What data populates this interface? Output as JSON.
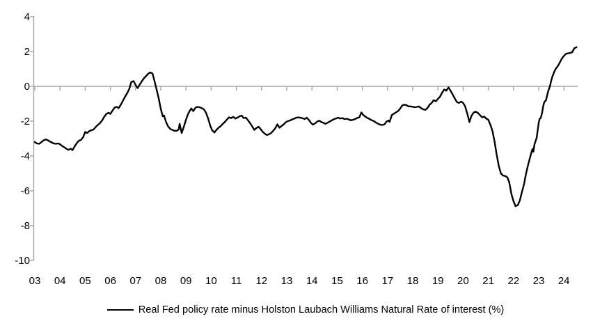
{
  "legend": {
    "label": "Real Fed policy rate minus Holston Laubach Williams Natural Rate of interest (%)"
  },
  "colors": {
    "axis": "#a6a6a6",
    "series_line": "#000000",
    "text": "#000000",
    "background": "#ffffff"
  },
  "chart_data": {
    "type": "line",
    "title": "",
    "xlabel": "",
    "ylabel": "",
    "ylim": [
      -10,
      4
    ],
    "xlim": [
      2002.94,
      2024.55
    ],
    "grid": false,
    "zero_line": true,
    "legend_position": "bottom",
    "y_ticks": [
      4,
      2,
      0,
      -2,
      -4,
      -6,
      -8,
      -10
    ],
    "x_ticks": [
      "03",
      "04",
      "05",
      "06",
      "07",
      "08",
      "09",
      "10",
      "11",
      "12",
      "13",
      "14",
      "15",
      "16",
      "17",
      "18",
      "19",
      "20",
      "21",
      "22",
      "23",
      "24"
    ],
    "series": [
      {
        "name": "Real Fed policy rate minus Holston Laubach Williams Natural Rate of interest (%)",
        "color": "#000000",
        "points": [
          [
            2003.0,
            -3.2
          ],
          [
            2003.08,
            -3.28
          ],
          [
            2003.17,
            -3.3
          ],
          [
            2003.25,
            -3.22
          ],
          [
            2003.33,
            -3.12
          ],
          [
            2003.42,
            -3.05
          ],
          [
            2003.5,
            -3.08
          ],
          [
            2003.58,
            -3.15
          ],
          [
            2003.67,
            -3.22
          ],
          [
            2003.75,
            -3.28
          ],
          [
            2003.83,
            -3.3
          ],
          [
            2003.92,
            -3.28
          ],
          [
            2004.0,
            -3.32
          ],
          [
            2004.08,
            -3.42
          ],
          [
            2004.17,
            -3.5
          ],
          [
            2004.25,
            -3.58
          ],
          [
            2004.33,
            -3.65
          ],
          [
            2004.42,
            -3.58
          ],
          [
            2004.5,
            -3.66
          ],
          [
            2004.58,
            -3.45
          ],
          [
            2004.67,
            -3.25
          ],
          [
            2004.75,
            -3.12
          ],
          [
            2004.83,
            -3.08
          ],
          [
            2004.92,
            -2.92
          ],
          [
            2005.0,
            -2.62
          ],
          [
            2005.08,
            -2.68
          ],
          [
            2005.17,
            -2.56
          ],
          [
            2005.25,
            -2.52
          ],
          [
            2005.33,
            -2.48
          ],
          [
            2005.42,
            -2.33
          ],
          [
            2005.5,
            -2.22
          ],
          [
            2005.58,
            -2.12
          ],
          [
            2005.67,
            -1.96
          ],
          [
            2005.75,
            -1.76
          ],
          [
            2005.83,
            -1.6
          ],
          [
            2005.92,
            -1.52
          ],
          [
            2006.0,
            -1.58
          ],
          [
            2006.08,
            -1.4
          ],
          [
            2006.17,
            -1.22
          ],
          [
            2006.25,
            -1.17
          ],
          [
            2006.33,
            -1.25
          ],
          [
            2006.42,
            -1.04
          ],
          [
            2006.5,
            -0.82
          ],
          [
            2006.58,
            -0.6
          ],
          [
            2006.67,
            -0.38
          ],
          [
            2006.75,
            -0.14
          ],
          [
            2006.83,
            0.25
          ],
          [
            2006.92,
            0.3
          ],
          [
            2007.0,
            0.08
          ],
          [
            2007.08,
            -0.1
          ],
          [
            2007.17,
            0.12
          ],
          [
            2007.25,
            0.3
          ],
          [
            2007.33,
            0.46
          ],
          [
            2007.42,
            0.6
          ],
          [
            2007.5,
            0.72
          ],
          [
            2007.58,
            0.8
          ],
          [
            2007.67,
            0.74
          ],
          [
            2007.75,
            0.3
          ],
          [
            2007.83,
            -0.15
          ],
          [
            2007.92,
            -0.7
          ],
          [
            2008.0,
            -1.3
          ],
          [
            2008.08,
            -1.72
          ],
          [
            2008.13,
            -1.68
          ],
          [
            2008.21,
            -2.05
          ],
          [
            2008.29,
            -2.3
          ],
          [
            2008.38,
            -2.45
          ],
          [
            2008.46,
            -2.5
          ],
          [
            2008.54,
            -2.55
          ],
          [
            2008.63,
            -2.55
          ],
          [
            2008.71,
            -2.48
          ],
          [
            2008.75,
            -2.15
          ],
          [
            2008.83,
            -2.68
          ],
          [
            2008.92,
            -2.3
          ],
          [
            2009.0,
            -1.92
          ],
          [
            2009.08,
            -1.6
          ],
          [
            2009.17,
            -1.35
          ],
          [
            2009.21,
            -1.27
          ],
          [
            2009.29,
            -1.42
          ],
          [
            2009.38,
            -1.22
          ],
          [
            2009.46,
            -1.18
          ],
          [
            2009.54,
            -1.2
          ],
          [
            2009.63,
            -1.25
          ],
          [
            2009.71,
            -1.32
          ],
          [
            2009.79,
            -1.5
          ],
          [
            2009.88,
            -1.85
          ],
          [
            2009.96,
            -2.25
          ],
          [
            2010.04,
            -2.52
          ],
          [
            2010.13,
            -2.65
          ],
          [
            2010.21,
            -2.5
          ],
          [
            2010.29,
            -2.38
          ],
          [
            2010.38,
            -2.28
          ],
          [
            2010.46,
            -2.15
          ],
          [
            2010.54,
            -2.05
          ],
          [
            2010.63,
            -1.9
          ],
          [
            2010.71,
            -1.78
          ],
          [
            2010.79,
            -1.82
          ],
          [
            2010.88,
            -1.75
          ],
          [
            2010.96,
            -1.85
          ],
          [
            2011.04,
            -1.8
          ],
          [
            2011.13,
            -1.72
          ],
          [
            2011.21,
            -1.68
          ],
          [
            2011.29,
            -1.82
          ],
          [
            2011.38,
            -1.8
          ],
          [
            2011.46,
            -1.95
          ],
          [
            2011.54,
            -2.1
          ],
          [
            2011.63,
            -2.3
          ],
          [
            2011.71,
            -2.5
          ],
          [
            2011.79,
            -2.4
          ],
          [
            2011.88,
            -2.32
          ],
          [
            2011.96,
            -2.45
          ],
          [
            2012.04,
            -2.6
          ],
          [
            2012.13,
            -2.72
          ],
          [
            2012.21,
            -2.8
          ],
          [
            2012.29,
            -2.75
          ],
          [
            2012.38,
            -2.68
          ],
          [
            2012.46,
            -2.55
          ],
          [
            2012.54,
            -2.42
          ],
          [
            2012.63,
            -2.18
          ],
          [
            2012.71,
            -2.38
          ],
          [
            2012.79,
            -2.28
          ],
          [
            2012.88,
            -2.18
          ],
          [
            2012.96,
            -2.06
          ],
          [
            2013.04,
            -2.0
          ],
          [
            2013.13,
            -1.96
          ],
          [
            2013.21,
            -1.9
          ],
          [
            2013.29,
            -1.86
          ],
          [
            2013.38,
            -1.8
          ],
          [
            2013.46,
            -1.78
          ],
          [
            2013.54,
            -1.8
          ],
          [
            2013.63,
            -1.83
          ],
          [
            2013.71,
            -1.88
          ],
          [
            2013.79,
            -1.8
          ],
          [
            2013.88,
            -1.93
          ],
          [
            2013.96,
            -2.1
          ],
          [
            2014.04,
            -2.2
          ],
          [
            2014.13,
            -2.12
          ],
          [
            2014.21,
            -2.02
          ],
          [
            2014.29,
            -1.97
          ],
          [
            2014.38,
            -2.05
          ],
          [
            2014.46,
            -2.1
          ],
          [
            2014.54,
            -2.15
          ],
          [
            2014.63,
            -2.08
          ],
          [
            2014.71,
            -2.02
          ],
          [
            2014.79,
            -1.95
          ],
          [
            2014.88,
            -1.88
          ],
          [
            2014.96,
            -1.84
          ],
          [
            2015.04,
            -1.8
          ],
          [
            2015.13,
            -1.85
          ],
          [
            2015.21,
            -1.82
          ],
          [
            2015.29,
            -1.88
          ],
          [
            2015.38,
            -1.86
          ],
          [
            2015.46,
            -1.9
          ],
          [
            2015.54,
            -1.95
          ],
          [
            2015.63,
            -1.92
          ],
          [
            2015.71,
            -1.88
          ],
          [
            2015.79,
            -1.82
          ],
          [
            2015.88,
            -1.78
          ],
          [
            2015.96,
            -1.5
          ],
          [
            2016.04,
            -1.65
          ],
          [
            2016.13,
            -1.75
          ],
          [
            2016.21,
            -1.82
          ],
          [
            2016.29,
            -1.88
          ],
          [
            2016.38,
            -1.95
          ],
          [
            2016.46,
            -2.0
          ],
          [
            2016.54,
            -2.08
          ],
          [
            2016.63,
            -2.15
          ],
          [
            2016.71,
            -2.2
          ],
          [
            2016.79,
            -2.22
          ],
          [
            2016.88,
            -2.18
          ],
          [
            2016.96,
            -2.02
          ],
          [
            2017.04,
            -1.96
          ],
          [
            2017.08,
            -2.04
          ],
          [
            2017.17,
            -1.65
          ],
          [
            2017.25,
            -1.57
          ],
          [
            2017.33,
            -1.5
          ],
          [
            2017.42,
            -1.42
          ],
          [
            2017.5,
            -1.28
          ],
          [
            2017.58,
            -1.1
          ],
          [
            2017.67,
            -1.05
          ],
          [
            2017.75,
            -1.08
          ],
          [
            2017.83,
            -1.15
          ],
          [
            2017.92,
            -1.15
          ],
          [
            2018.0,
            -1.17
          ],
          [
            2018.08,
            -1.2
          ],
          [
            2018.17,
            -1.18
          ],
          [
            2018.25,
            -1.15
          ],
          [
            2018.33,
            -1.25
          ],
          [
            2018.42,
            -1.32
          ],
          [
            2018.5,
            -1.35
          ],
          [
            2018.58,
            -1.25
          ],
          [
            2018.67,
            -1.05
          ],
          [
            2018.75,
            -0.95
          ],
          [
            2018.83,
            -0.8
          ],
          [
            2018.92,
            -0.85
          ],
          [
            2019.0,
            -0.72
          ],
          [
            2019.08,
            -0.6
          ],
          [
            2019.17,
            -0.35
          ],
          [
            2019.25,
            -0.18
          ],
          [
            2019.33,
            -0.25
          ],
          [
            2019.42,
            -0.06
          ],
          [
            2019.5,
            -0.25
          ],
          [
            2019.58,
            -0.45
          ],
          [
            2019.67,
            -0.7
          ],
          [
            2019.75,
            -0.9
          ],
          [
            2019.83,
            -0.95
          ],
          [
            2019.92,
            -0.88
          ],
          [
            2020.0,
            -0.95
          ],
          [
            2020.08,
            -1.15
          ],
          [
            2020.17,
            -1.6
          ],
          [
            2020.25,
            -2.05
          ],
          [
            2020.33,
            -1.7
          ],
          [
            2020.42,
            -1.5
          ],
          [
            2020.5,
            -1.45
          ],
          [
            2020.58,
            -1.52
          ],
          [
            2020.67,
            -1.65
          ],
          [
            2020.75,
            -1.78
          ],
          [
            2020.83,
            -1.73
          ],
          [
            2020.92,
            -1.85
          ],
          [
            2021.0,
            -1.92
          ],
          [
            2021.08,
            -2.2
          ],
          [
            2021.17,
            -2.6
          ],
          [
            2021.25,
            -3.2
          ],
          [
            2021.33,
            -3.9
          ],
          [
            2021.42,
            -4.6
          ],
          [
            2021.5,
            -5.0
          ],
          [
            2021.58,
            -5.12
          ],
          [
            2021.67,
            -5.15
          ],
          [
            2021.75,
            -5.22
          ],
          [
            2021.83,
            -5.5
          ],
          [
            2021.92,
            -6.2
          ],
          [
            2022.0,
            -6.6
          ],
          [
            2022.08,
            -6.88
          ],
          [
            2022.17,
            -6.82
          ],
          [
            2022.25,
            -6.55
          ],
          [
            2022.33,
            -6.1
          ],
          [
            2022.42,
            -5.6
          ],
          [
            2022.5,
            -5.0
          ],
          [
            2022.58,
            -4.5
          ],
          [
            2022.67,
            -4.0
          ],
          [
            2022.75,
            -3.6
          ],
          [
            2022.79,
            -3.75
          ],
          [
            2022.83,
            -3.35
          ],
          [
            2022.92,
            -2.95
          ],
          [
            2022.96,
            -2.5
          ],
          [
            2023.0,
            -2.1
          ],
          [
            2023.04,
            -1.85
          ],
          [
            2023.08,
            -1.82
          ],
          [
            2023.13,
            -1.55
          ],
          [
            2023.17,
            -1.2
          ],
          [
            2023.21,
            -0.95
          ],
          [
            2023.25,
            -0.85
          ],
          [
            2023.29,
            -0.8
          ],
          [
            2023.33,
            -0.55
          ],
          [
            2023.38,
            -0.25
          ],
          [
            2023.42,
            -0.1
          ],
          [
            2023.46,
            0.1
          ],
          [
            2023.5,
            0.35
          ],
          [
            2023.54,
            0.55
          ],
          [
            2023.58,
            0.7
          ],
          [
            2023.63,
            0.88
          ],
          [
            2023.67,
            1.0
          ],
          [
            2023.75,
            1.15
          ],
          [
            2023.83,
            1.35
          ],
          [
            2023.92,
            1.6
          ],
          [
            2024.0,
            1.75
          ],
          [
            2024.08,
            1.87
          ],
          [
            2024.17,
            1.9
          ],
          [
            2024.25,
            1.92
          ],
          [
            2024.33,
            1.96
          ],
          [
            2024.38,
            2.1
          ],
          [
            2024.42,
            2.2
          ],
          [
            2024.46,
            2.22
          ],
          [
            2024.5,
            2.25
          ]
        ]
      }
    ]
  }
}
